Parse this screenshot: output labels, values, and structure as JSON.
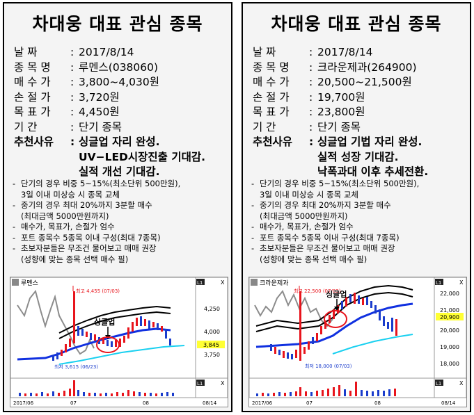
{
  "cards": [
    {
      "title": "차대웅 대표 관심 종목",
      "fields": [
        {
          "label": "날      짜",
          "value": "2017/8/14"
        },
        {
          "label": "종 목 명",
          "value": "루멘스(038060)"
        },
        {
          "label": "매 수 가",
          "value": "3,800~4,030원"
        },
        {
          "label": "손 절 가",
          "value": "3,720원"
        },
        {
          "label": "목 표 가",
          "value": "4,450원"
        },
        {
          "label": "기      간",
          "value": "단기 종목"
        }
      ],
      "reason_label": "추천사유",
      "reasons": [
        "싱글업  자리 완성.",
        "UV−LED시장진출 기대감.",
        "실적 개선 기대감."
      ],
      "chart": {
        "name": "루멘스",
        "high_label": "최고 4,455 (07/03)",
        "low_label": "최저 3,615 (06/23)",
        "pattern_label": "싱글업",
        "y_ticks": [
          "4,250",
          "4,000",
          "3,750"
        ],
        "current_price": "3,845",
        "x_labels": [
          "2017/06",
          "07",
          "08",
          "08/14"
        ],
        "panel_tags": [
          "L1",
          "X",
          "L1",
          "X"
        ]
      }
    },
    {
      "title": "차대웅 대표 관심 종목",
      "fields": [
        {
          "label": "날      짜",
          "value": "2017/8/14"
        },
        {
          "label": "종 목 명",
          "value": "크라운제과(264900)"
        },
        {
          "label": "매 수 가",
          "value": "20,500~21,500원"
        },
        {
          "label": "손 절 가",
          "value": "19,700원"
        },
        {
          "label": "목 표 가",
          "value": "23,800원"
        },
        {
          "label": "기      간",
          "value": "단기 종목"
        }
      ],
      "reason_label": "추천사유",
      "reasons": [
        "싱글업 기법 자리 완성.",
        "실적 성장 기대감.",
        "낙폭과대 이후 추세전환."
      ],
      "chart": {
        "name": "크라운제과",
        "high_label": "최고 22,500 (07/03)",
        "low_label": "최저 18,000 (07/03)",
        "pattern_label": "싱글업",
        "y_ticks": [
          "22,000",
          "21,000",
          "20,000",
          "19,000",
          "18,000"
        ],
        "current_price": "20,900",
        "x_labels": [
          "2017/06",
          "07",
          "08",
          "08/14"
        ],
        "panel_tags": [
          "L1",
          "X",
          "L1",
          "X"
        ]
      }
    }
  ],
  "notes": [
    {
      "line1": "단기의 경우 비중 5~15%(최소단위  500만원),",
      "line2": "3일 이내 미상승 시 종목 교체"
    },
    {
      "line1": "중기의 경우 최대 20%까지 3분할 매수",
      "line2": "(최대금액  5000만원까지)"
    },
    {
      "line1": "매수가, 목표가, 손절가 엄수",
      "line2": ""
    },
    {
      "line1": "포트 종목수 5종목 이내 구성(최대 7종목)",
      "line2": ""
    },
    {
      "line1": "초보자분들은 무조건 물어보고 매매 권장",
      "line2": "(성향에 맞는 종목 선택 매수 필)"
    }
  ],
  "colors": {
    "up": "#e8141c",
    "down": "#1a3ccc",
    "ma_blue": "#1030e0",
    "ma_cyan": "#19d0f0",
    "band": "#000000",
    "price_line": "#8c8c8c",
    "highlight": "#ffff33"
  }
}
